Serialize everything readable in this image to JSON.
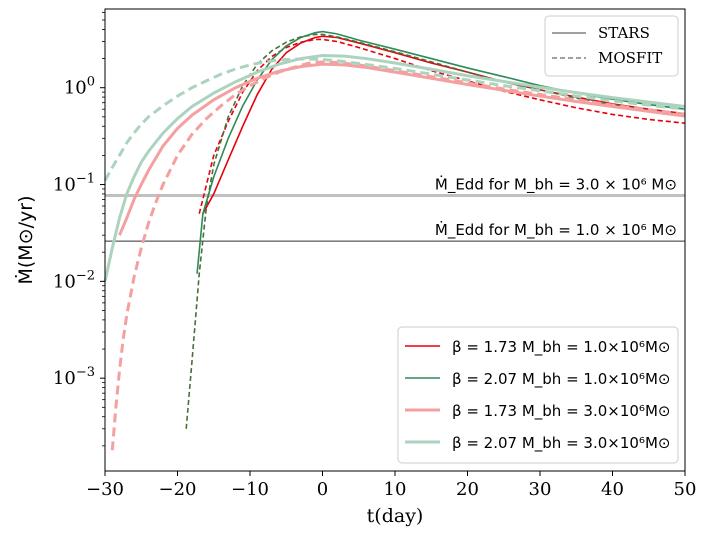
{
  "chart_data": {
    "type": "line",
    "xlabel": "t(day)",
    "ylabel": "Ṁ(M⊙/yr)",
    "yscale": "log",
    "xlim": [
      -30,
      50
    ],
    "ylim": [
      0.00011,
      6.5
    ],
    "x_ticks": [
      {
        "value": -30,
        "label": "−30"
      },
      {
        "value": -20,
        "label": "−20"
      },
      {
        "value": -10,
        "label": "−10"
      },
      {
        "value": 0,
        "label": "0"
      },
      {
        "value": 10,
        "label": "10"
      },
      {
        "value": 20,
        "label": "20"
      },
      {
        "value": 30,
        "label": "30"
      },
      {
        "value": 40,
        "label": "40"
      },
      {
        "value": 50,
        "label": "50"
      }
    ],
    "y_ticks": [
      {
        "value": 0.001,
        "base": "10",
        "exp": "−3"
      },
      {
        "value": 0.01,
        "base": "10",
        "exp": "−2"
      },
      {
        "value": 0.1,
        "base": "10",
        "exp": "−1"
      },
      {
        "value": 1,
        "base": "10",
        "exp": "0"
      }
    ],
    "eddington_lines": [
      {
        "value": 0.077,
        "color": "#c0c0c0",
        "label": "Ṁ_Edd for M_bh = 3.0 × 10⁶ M⊙",
        "label_t": 15.5
      },
      {
        "value": 0.026,
        "color": "#808080",
        "label": "Ṁ_Edd for M_bh = 1.0 × 10⁶ M⊙",
        "label_t": 15.5
      }
    ],
    "style_legend": [
      {
        "label": "STARS",
        "dash": "solid"
      },
      {
        "label": "MOSFIT",
        "dash": "dashed"
      }
    ],
    "series": [
      {
        "name": "β = 1.73 M_bh = 1.0×10⁶M⊙",
        "color": "#e8000b",
        "stars": {
          "x": [
            -16.5,
            -15,
            -13,
            -11,
            -9,
            -7,
            -5,
            -3,
            -1,
            0,
            2,
            5,
            10,
            15,
            20,
            25,
            30,
            35,
            40,
            45,
            50
          ],
          "y": [
            0.05,
            0.08,
            0.18,
            0.4,
            0.85,
            1.55,
            2.3,
            2.9,
            3.3,
            3.4,
            3.3,
            2.9,
            2.3,
            1.8,
            1.45,
            1.15,
            0.95,
            0.8,
            0.68,
            0.6,
            0.54
          ]
        },
        "mosfit": {
          "x": [
            -17,
            -16,
            -15,
            -13,
            -11,
            -9,
            -7,
            -5,
            -3,
            -1,
            0,
            2,
            5,
            10,
            15,
            20,
            25,
            30,
            35,
            40,
            45,
            50
          ],
          "y": [
            0.05,
            0.1,
            0.2,
            0.45,
            0.9,
            1.5,
            2.1,
            2.6,
            2.95,
            3.15,
            3.15,
            3.0,
            2.6,
            2.0,
            1.5,
            1.18,
            0.92,
            0.75,
            0.62,
            0.53,
            0.47,
            0.43
          ]
        }
      },
      {
        "name": "β = 2.07 M_bh = 1.0×10⁶M⊙",
        "color": "#2e8b57",
        "stars": {
          "x": [
            -17.3,
            -16.5,
            -15,
            -13,
            -11,
            -9,
            -7,
            -5,
            -3,
            -1,
            0,
            2,
            5,
            10,
            15,
            20,
            25,
            30,
            35,
            40,
            45,
            50
          ],
          "y": [
            0.012,
            0.05,
            0.12,
            0.3,
            0.65,
            1.2,
            1.95,
            2.7,
            3.3,
            3.7,
            3.8,
            3.6,
            3.1,
            2.5,
            2.0,
            1.6,
            1.3,
            1.05,
            0.88,
            0.76,
            0.67,
            0.6
          ]
        },
        "mosfit": {
          "x": [
            -18.8,
            -18,
            -17,
            -16,
            -15,
            -13,
            -11,
            -9,
            -7,
            -5,
            -3,
            -1,
            0,
            2,
            5,
            10,
            15,
            20,
            25,
            30,
            35,
            40,
            45,
            50
          ],
          "y": [
            0.0003,
            0.0015,
            0.012,
            0.06,
            0.16,
            0.5,
            1.05,
            1.75,
            2.4,
            2.95,
            3.35,
            3.55,
            3.55,
            3.35,
            2.95,
            2.35,
            1.85,
            1.45,
            1.15,
            0.95,
            0.78,
            0.67,
            0.59,
            0.52
          ]
        }
      },
      {
        "name": "β = 1.73 M_bh = 3.0×10⁶M⊙",
        "color": "#f4a0a0",
        "stars": {
          "x": [
            -28,
            -27,
            -26,
            -25,
            -24,
            -22,
            -20,
            -18,
            -15,
            -12,
            -9,
            -6,
            -3,
            0,
            3,
            6,
            10,
            15,
            20,
            25,
            30,
            35,
            40,
            45,
            50
          ],
          "y": [
            0.03,
            0.045,
            0.07,
            0.1,
            0.14,
            0.25,
            0.38,
            0.52,
            0.75,
            1.0,
            1.25,
            1.48,
            1.65,
            1.75,
            1.72,
            1.62,
            1.45,
            1.25,
            1.08,
            0.94,
            0.82,
            0.72,
            0.64,
            0.57,
            0.51
          ]
        },
        "mosfit": {
          "x": [
            -29,
            -28.5,
            -28,
            -27.5,
            -27,
            -26,
            -25,
            -24,
            -23,
            -22,
            -20,
            -18,
            -16,
            -14,
            -12,
            -10,
            -8,
            -6,
            -4,
            -2,
            0,
            2,
            5,
            10,
            15,
            20,
            25,
            30,
            35,
            40,
            45,
            50
          ],
          "y": [
            0.00018,
            0.0005,
            0.0012,
            0.0025,
            0.0045,
            0.011,
            0.022,
            0.04,
            0.065,
            0.1,
            0.2,
            0.33,
            0.48,
            0.65,
            0.85,
            1.05,
            1.25,
            1.45,
            1.62,
            1.78,
            1.85,
            1.82,
            1.72,
            1.5,
            1.3,
            1.12,
            0.97,
            0.85,
            0.75,
            0.66,
            0.59,
            0.53
          ]
        }
      },
      {
        "name": "β = 2.07 M_bh = 3.0×10⁶M⊙",
        "color": "#acd3bd",
        "stars": {
          "x": [
            -30,
            -29,
            -28,
            -27,
            -26,
            -25,
            -24,
            -22,
            -20,
            -18,
            -15,
            -12,
            -9,
            -6,
            -3,
            0,
            3,
            6,
            10,
            15,
            20,
            25,
            30,
            35,
            40,
            45,
            50
          ],
          "y": [
            0.01,
            0.022,
            0.045,
            0.08,
            0.12,
            0.17,
            0.22,
            0.34,
            0.48,
            0.64,
            0.88,
            1.15,
            1.45,
            1.75,
            2.0,
            2.15,
            2.12,
            2.0,
            1.8,
            1.55,
            1.33,
            1.16,
            1.01,
            0.89,
            0.79,
            0.71,
            0.64
          ]
        },
        "mosfit": {
          "x": [
            -30,
            -29,
            -28,
            -27,
            -26,
            -25,
            -24,
            -22,
            -20,
            -18,
            -16,
            -14,
            -12,
            -10,
            -8,
            -6,
            -4,
            -2,
            0,
            2,
            5,
            10,
            15,
            20,
            25,
            30,
            35,
            40,
            45,
            50
          ],
          "y": [
            0.11,
            0.15,
            0.2,
            0.27,
            0.34,
            0.42,
            0.5,
            0.65,
            0.82,
            1.0,
            1.18,
            1.38,
            1.56,
            1.72,
            1.85,
            1.93,
            1.97,
            1.98,
            1.95,
            1.9,
            1.78,
            1.58,
            1.38,
            1.2,
            1.05,
            0.93,
            0.82,
            0.73,
            0.66,
            0.6
          ]
        }
      }
    ]
  }
}
